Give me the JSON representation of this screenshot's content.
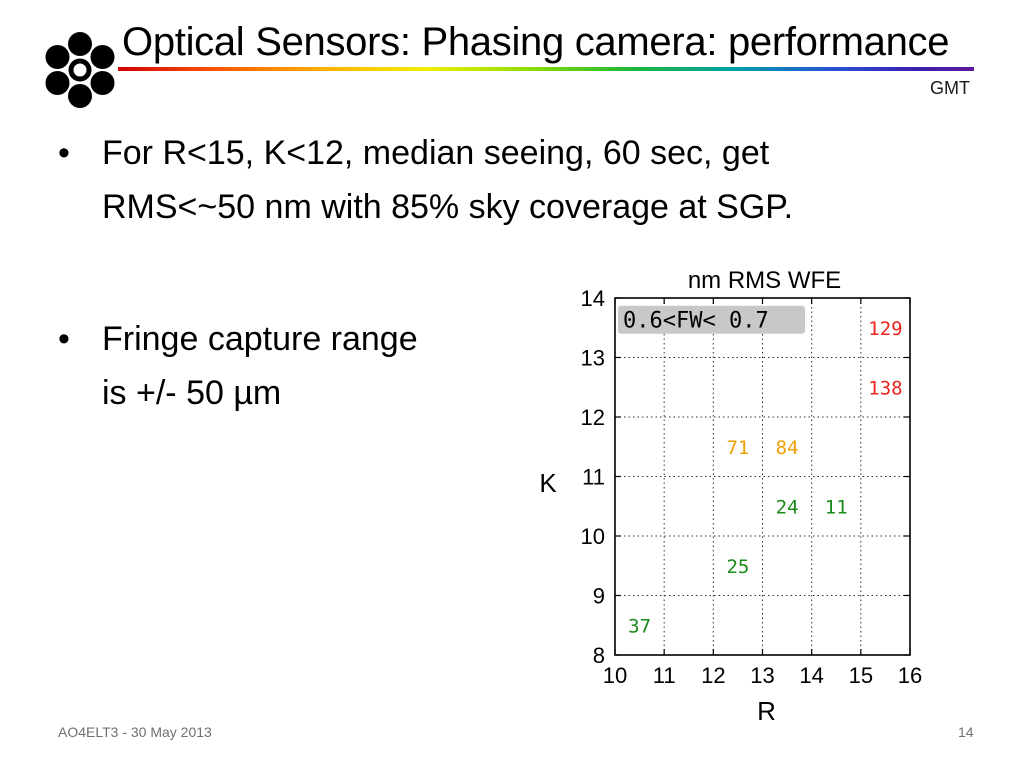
{
  "slide": {
    "title": "Optical Sensors: Phasing camera: performance",
    "brand": "GMT",
    "bullets": [
      {
        "text": "For R<15, K<12, median seeing, 60 sec, get\nRMS<~50 nm with 85% sky coverage at SGP."
      },
      {
        "text": "Fringe capture range\n is +/- 50 µm"
      }
    ],
    "footer_left": "AO4ELT3 - 30 May 2013",
    "page_number": "14",
    "bullet_glyph": "•"
  },
  "logo": {
    "icon": "gmt-segment-logo",
    "color": "#000000"
  },
  "colors": {
    "rule_gradient": [
      "#d00000",
      "#ff5a00",
      "#ffb000",
      "#f0ee00",
      "#8fdc00",
      "#1cb83a",
      "#00a0a8",
      "#2a4fd6",
      "#5a1a9a"
    ],
    "value_red": "#e8261f",
    "value_orange": "#f0a000",
    "value_green": "#1a8a1a",
    "box_fill": "#c8c8c8"
  },
  "chart_data": {
    "type": "table",
    "title": "nm RMS WFE",
    "xlabel": "R",
    "ylabel": "K",
    "xlim": [
      10,
      16
    ],
    "ylim": [
      8,
      14
    ],
    "xticks": [
      10,
      11,
      12,
      13,
      14,
      15,
      16
    ],
    "yticks": [
      8,
      9,
      10,
      11,
      12,
      13,
      14
    ],
    "grid": true,
    "annotation": "0.6<FW< 0.7",
    "points": [
      {
        "x": 15.5,
        "y": 13.5,
        "value": 129,
        "color": "#e8261f"
      },
      {
        "x": 15.5,
        "y": 12.5,
        "value": 138,
        "color": "#e8261f"
      },
      {
        "x": 12.5,
        "y": 11.5,
        "value": 71,
        "color": "#f0a000"
      },
      {
        "x": 13.5,
        "y": 11.5,
        "value": 84,
        "color": "#f0a000"
      },
      {
        "x": 13.5,
        "y": 10.5,
        "value": 24,
        "color": "#1a8a1a"
      },
      {
        "x": 14.5,
        "y": 10.5,
        "value": 11,
        "color": "#1a8a1a"
      },
      {
        "x": 12.5,
        "y": 9.5,
        "value": 25,
        "color": "#1a8a1a"
      },
      {
        "x": 10.5,
        "y": 8.5,
        "value": 37,
        "color": "#1a8a1a"
      }
    ]
  }
}
